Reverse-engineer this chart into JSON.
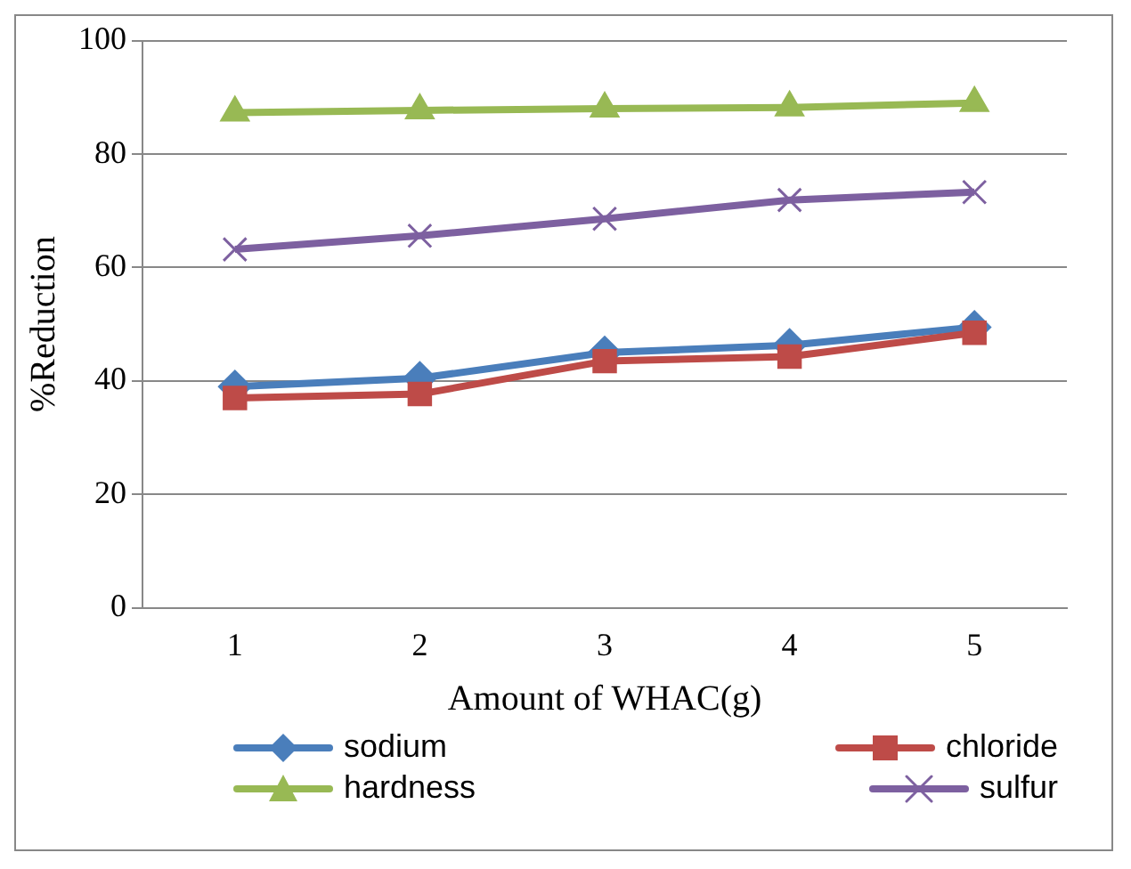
{
  "chart_data": {
    "type": "line",
    "xlabel": "Amount of WHAC(g)",
    "ylabel": "%Reduction",
    "categories": [
      "1",
      "2",
      "3",
      "4",
      "5"
    ],
    "ylim": [
      0,
      100
    ],
    "yticks": [
      0,
      20,
      40,
      60,
      80,
      100
    ],
    "grid": "y",
    "legend": "bottom",
    "series": [
      {
        "name": "sodium",
        "color": "#4a7ebb",
        "marker": "diamond",
        "values": [
          39,
          40.5,
          45,
          46.3,
          49.5
        ]
      },
      {
        "name": "chloride",
        "color": "#be4b48",
        "marker": "square",
        "values": [
          37,
          37.7,
          43.5,
          44.3,
          48.5
        ]
      },
      {
        "name": "hardness",
        "color": "#98b954",
        "marker": "triangle",
        "values": [
          87.3,
          87.7,
          88,
          88.2,
          89
        ]
      },
      {
        "name": "sulfur",
        "color": "#7d60a0",
        "marker": "cross",
        "values": [
          63.2,
          65.6,
          68.6,
          71.9,
          73.3
        ]
      }
    ]
  }
}
